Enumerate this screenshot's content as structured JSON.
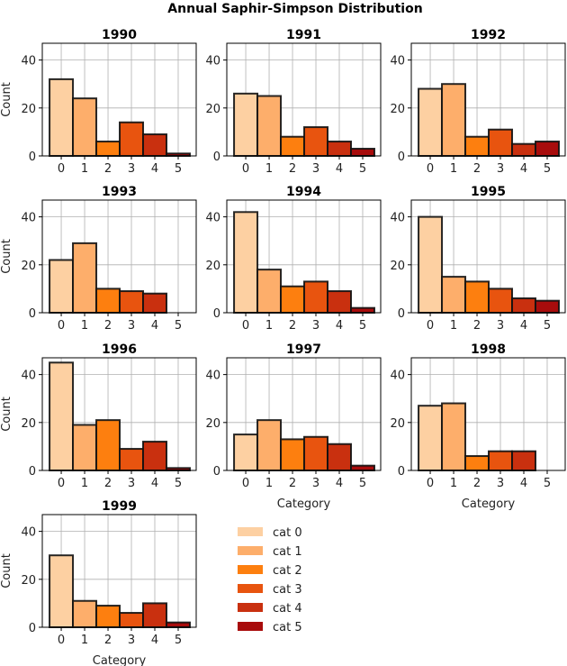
{
  "chart_data": {
    "type": "bar",
    "title": "Annual Saphir-Simpson Distribution",
    "xlabel": "Category",
    "ylabel": "Count",
    "categories": [
      "0",
      "1",
      "2",
      "3",
      "4",
      "5"
    ],
    "ylim": [
      0,
      47
    ],
    "yticks": [
      "0",
      "20",
      "40"
    ],
    "grid": true,
    "legend_placement": "lower-right empty panel",
    "colors": [
      "#fdd0a2",
      "#fdae6b",
      "#fd7f0f",
      "#e8540f",
      "#c9300f",
      "#a80c0c"
    ],
    "legend": [
      "cat 0",
      "cat 1",
      "cat 2",
      "cat 3",
      "cat 4",
      "cat 5"
    ],
    "panels": [
      {
        "title": "1990",
        "values": [
          32,
          24,
          6,
          14,
          9,
          1
        ]
      },
      {
        "title": "1991",
        "values": [
          26,
          25,
          8,
          12,
          6,
          3
        ]
      },
      {
        "title": "1992",
        "values": [
          28,
          30,
          8,
          11,
          5,
          6
        ]
      },
      {
        "title": "1993",
        "values": [
          22,
          29,
          10,
          9,
          8,
          0
        ]
      },
      {
        "title": "1994",
        "values": [
          42,
          18,
          11,
          13,
          9,
          2
        ]
      },
      {
        "title": "1995",
        "values": [
          40,
          15,
          13,
          10,
          6,
          5
        ]
      },
      {
        "title": "1996",
        "values": [
          45,
          19,
          21,
          9,
          12,
          1
        ]
      },
      {
        "title": "1997",
        "values": [
          15,
          21,
          13,
          14,
          11,
          2
        ]
      },
      {
        "title": "1998",
        "values": [
          27,
          28,
          6,
          8,
          8,
          0
        ]
      },
      {
        "title": "1999",
        "values": [
          30,
          11,
          9,
          6,
          10,
          2
        ]
      }
    ]
  }
}
